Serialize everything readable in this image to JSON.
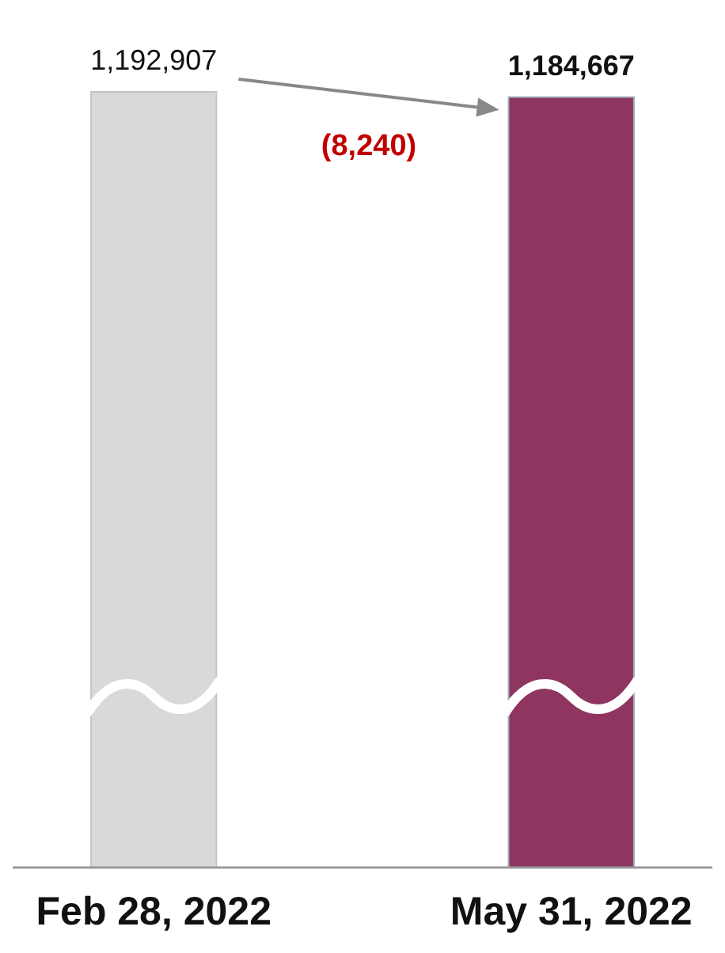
{
  "chart_data": {
    "type": "bar",
    "categories": [
      "Feb 28, 2022",
      "May 31, 2022"
    ],
    "values": [
      1192907,
      1184667
    ],
    "colors": [
      "#d9d9d9",
      "#8e3560"
    ],
    "value_labels": [
      "1,192,907",
      "1,184,667"
    ],
    "annotations": [
      "(8,240)"
    ]
  }
}
